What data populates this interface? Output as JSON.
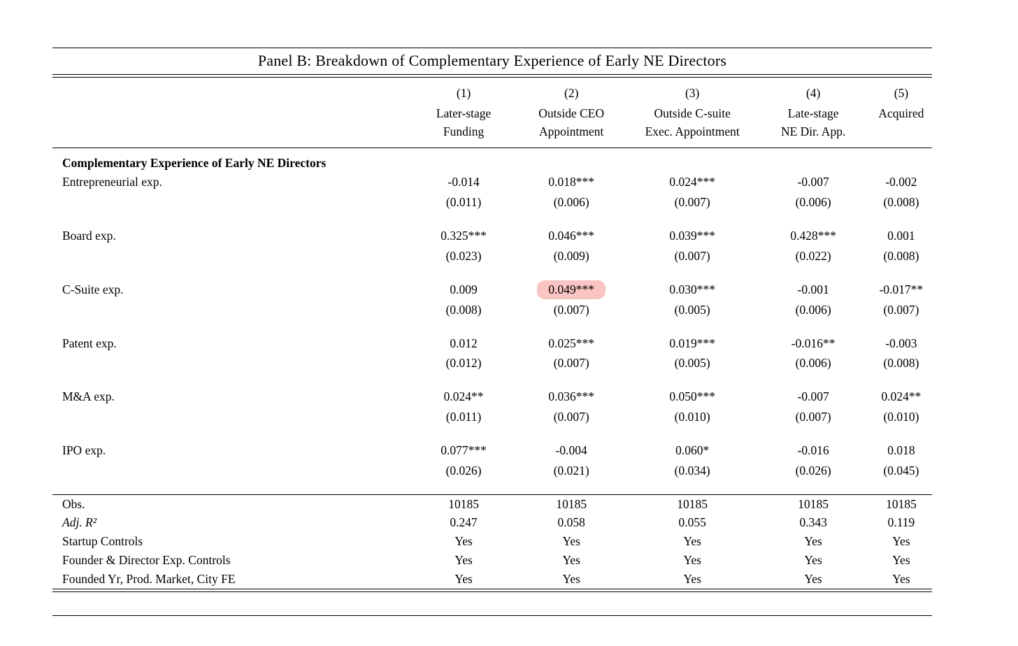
{
  "table": {
    "title": "Panel B: Breakdown of Complementary Experience of Early NE Directors",
    "columns": [
      {
        "number": "(1)",
        "label": "Later-stage\nFunding"
      },
      {
        "number": "(2)",
        "label": "Outside CEO\nAppointment"
      },
      {
        "number": "(3)",
        "label": "Outside C-suite\nExec. Appointment"
      },
      {
        "number": "(4)",
        "label": "Late-stage\nNE Dir. App."
      },
      {
        "number": "(5)",
        "label": "Acquired"
      }
    ],
    "section_header": "Complementary Experience of Early NE Directors",
    "coef_rows": [
      {
        "label": "Entrepreneurial exp.",
        "coefs": [
          "-0.014",
          "0.018***",
          "0.024***",
          "-0.007",
          "-0.002"
        ],
        "ses": [
          "(0.011)",
          "(0.006)",
          "(0.007)",
          "(0.006)",
          "(0.008)"
        ],
        "highlight_col": null
      },
      {
        "label": "Board exp.",
        "coefs": [
          "0.325***",
          "0.046***",
          "0.039***",
          "0.428***",
          "0.001"
        ],
        "ses": [
          "(0.023)",
          "(0.009)",
          "(0.007)",
          "(0.022)",
          "(0.008)"
        ],
        "highlight_col": null
      },
      {
        "label": "C-Suite exp.",
        "coefs": [
          "0.009",
          "0.049***",
          "0.030***",
          "-0.001",
          "-0.017**"
        ],
        "ses": [
          "(0.008)",
          "(0.007)",
          "(0.005)",
          "(0.006)",
          "(0.007)"
        ],
        "highlight_col": 1
      },
      {
        "label": "Patent exp.",
        "coefs": [
          "0.012",
          "0.025***",
          "0.019***",
          "-0.016**",
          "-0.003"
        ],
        "ses": [
          "(0.012)",
          "(0.007)",
          "(0.005)",
          "(0.006)",
          "(0.008)"
        ],
        "highlight_col": null
      },
      {
        "label": "M&A exp.",
        "coefs": [
          "0.024**",
          "0.036***",
          "0.050***",
          "-0.007",
          "0.024**"
        ],
        "ses": [
          "(0.011)",
          "(0.007)",
          "(0.010)",
          "(0.007)",
          "(0.010)"
        ],
        "highlight_col": null
      },
      {
        "label": "IPO exp.",
        "coefs": [
          "0.077***",
          "-0.004",
          "0.060*",
          "-0.016",
          "0.018"
        ],
        "ses": [
          "(0.026)",
          "(0.021)",
          "(0.034)",
          "(0.026)",
          "(0.045)"
        ],
        "highlight_col": null
      }
    ],
    "stats_rows": [
      {
        "label": "Obs.",
        "italic": false,
        "values": [
          "10185",
          "10185",
          "10185",
          "10185",
          "10185"
        ]
      },
      {
        "label": "Adj. R²",
        "italic": true,
        "values": [
          "0.247",
          "0.058",
          "0.055",
          "0.343",
          "0.119"
        ]
      },
      {
        "label": "Startup Controls",
        "italic": false,
        "values": [
          "Yes",
          "Yes",
          "Yes",
          "Yes",
          "Yes"
        ]
      },
      {
        "label": "Founder & Director Exp. Controls",
        "italic": false,
        "values": [
          "Yes",
          "Yes",
          "Yes",
          "Yes",
          "Yes"
        ]
      },
      {
        "label": "Founded Yr, Prod. Market, City FE",
        "italic": false,
        "values": [
          "Yes",
          "Yes",
          "Yes",
          "Yes",
          "Yes"
        ]
      }
    ],
    "highlight_color": "#f9c4c2"
  }
}
